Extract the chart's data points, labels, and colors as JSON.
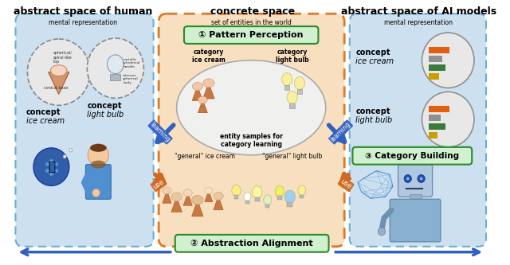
{
  "title_left": "abstract space of human",
  "title_center": "concrete space",
  "title_right": "abstract space of AI models",
  "left_box_color": "#cce0f0",
  "left_box_border": "#6aaed6",
  "right_box_color": "#cce0f0",
  "right_box_border": "#6aaed6",
  "center_box_color": "#f8dfc0",
  "center_box_border": "#e07820",
  "pattern_box_color": "#d0f0d0",
  "pattern_box_border": "#2a8a2a",
  "category_building_box_color": "#d0f0d0",
  "category_building_box_border": "#2a8a2a",
  "abstraction_box_color": "#d0f0d0",
  "abstraction_box_border": "#2a8a2a",
  "learning_arrow_color": "#3060c0",
  "use_arrow_color": "#d06820",
  "bottom_arrow_color": "#3060c0",
  "bar_orange": "#e06010",
  "bar_gray": "#909090",
  "bar_green": "#3a7a3a",
  "bar_yellow": "#c8a000",
  "circle_bg": "#e8e8e8",
  "circle_border": "#909090"
}
